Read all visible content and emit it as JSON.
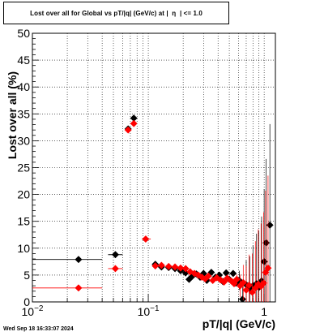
{
  "chart_data": {
    "type": "scatter",
    "title": "Lost over all for Global vs pT/|q| (GeV/c) at |  η  | <= 1.0",
    "xlabel": "pT/|q| (GeV/c)",
    "ylabel": "Lost over all (%)",
    "x_scale": "log",
    "xlim": [
      0.01,
      1.25
    ],
    "ylim": [
      0,
      50
    ],
    "y_ticks": [
      "0",
      "5",
      "10",
      "15",
      "20",
      "25",
      "30",
      "35",
      "40",
      "45",
      "50"
    ],
    "x_tick_labels": [
      {
        "value": 0.01,
        "base": "10",
        "exp": "−2"
      },
      {
        "value": 0.1,
        "base": "10",
        "exp": "−1"
      },
      {
        "value": 1,
        "base": "1",
        "exp": ""
      }
    ],
    "grid": true,
    "series": [
      {
        "color": "#000000",
        "points": [
          {
            "x": 0.025,
            "y": 7.9,
            "xlo": 0.01,
            "xhi": 0.04
          },
          {
            "x": 0.052,
            "y": 8.8,
            "xlo": 0.045,
            "xhi": 0.06
          },
          {
            "x": 0.067,
            "y": 32.2
          },
          {
            "x": 0.075,
            "y": 34.2
          },
          {
            "x": 0.115,
            "y": 7.0
          },
          {
            "x": 0.13,
            "y": 6.5
          },
          {
            "x": 0.15,
            "y": 6.4
          },
          {
            "x": 0.17,
            "y": 6.2
          },
          {
            "x": 0.19,
            "y": 5.8
          },
          {
            "x": 0.21,
            "y": 5.4
          },
          {
            "x": 0.225,
            "y": 4.2
          },
          {
            "x": 0.24,
            "y": 4.8
          },
          {
            "x": 0.26,
            "y": 5.2
          },
          {
            "x": 0.28,
            "y": 4.6
          },
          {
            "x": 0.3,
            "y": 5.3
          },
          {
            "x": 0.32,
            "y": 4.0
          },
          {
            "x": 0.35,
            "y": 5.5
          },
          {
            "x": 0.38,
            "y": 4.6
          },
          {
            "x": 0.41,
            "y": 5.0
          },
          {
            "x": 0.44,
            "y": 3.8
          },
          {
            "x": 0.47,
            "y": 5.4
          },
          {
            "x": 0.5,
            "y": 4.2
          },
          {
            "x": 0.54,
            "y": 5.3
          },
          {
            "x": 0.57,
            "y": 3.5
          },
          {
            "x": 0.61,
            "y": 4.0
          },
          {
            "x": 0.65,
            "y": 0.5
          },
          {
            "x": 0.7,
            "y": 3.2
          },
          {
            "x": 0.75,
            "y": 2.5
          },
          {
            "x": 0.8,
            "y": 3.0
          },
          {
            "x": 0.86,
            "y": 3.4
          },
          {
            "x": 0.9,
            "y": 2.7
          },
          {
            "x": 0.95,
            "y": 3.9
          },
          {
            "x": 1.0,
            "y": 7.5
          },
          {
            "x": 1.04,
            "y": 11.0
          },
          {
            "x": 1.12,
            "y": 14.3
          }
        ]
      },
      {
        "color": "#ff0000",
        "points": [
          {
            "x": 0.025,
            "y": 2.6,
            "xlo": 0.01,
            "xhi": 0.04
          },
          {
            "x": 0.052,
            "y": 6.2,
            "xlo": 0.045,
            "xhi": 0.06
          },
          {
            "x": 0.067,
            "y": 32.0
          },
          {
            "x": 0.075,
            "y": 33.2
          },
          {
            "x": 0.095,
            "y": 11.7,
            "xlo": 0.088,
            "xhi": 0.105
          },
          {
            "x": 0.115,
            "y": 6.7
          },
          {
            "x": 0.13,
            "y": 6.8
          },
          {
            "x": 0.15,
            "y": 6.6
          },
          {
            "x": 0.17,
            "y": 6.5
          },
          {
            "x": 0.19,
            "y": 6.3
          },
          {
            "x": 0.21,
            "y": 6.2
          },
          {
            "x": 0.23,
            "y": 5.6
          },
          {
            "x": 0.25,
            "y": 5.3
          },
          {
            "x": 0.27,
            "y": 5.0
          },
          {
            "x": 0.29,
            "y": 4.6
          },
          {
            "x": 0.31,
            "y": 4.3
          },
          {
            "x": 0.33,
            "y": 4.8
          },
          {
            "x": 0.36,
            "y": 4.0
          },
          {
            "x": 0.39,
            "y": 4.5
          },
          {
            "x": 0.42,
            "y": 4.1
          },
          {
            "x": 0.45,
            "y": 3.7
          },
          {
            "x": 0.48,
            "y": 4.4
          },
          {
            "x": 0.52,
            "y": 3.9
          },
          {
            "x": 0.55,
            "y": 3.4
          },
          {
            "x": 0.58,
            "y": 4.2
          },
          {
            "x": 0.62,
            "y": 3.0
          },
          {
            "x": 0.66,
            "y": 3.6
          },
          {
            "x": 0.7,
            "y": 2.2
          },
          {
            "x": 0.74,
            "y": 3.1
          },
          {
            "x": 0.79,
            "y": 1.8
          },
          {
            "x": 0.84,
            "y": 2.6
          },
          {
            "x": 0.89,
            "y": 3.3
          },
          {
            "x": 0.94,
            "y": 2.9
          },
          {
            "x": 0.99,
            "y": 3.5
          },
          {
            "x": 1.03,
            "y": 5.5
          },
          {
            "x": 1.08,
            "y": 6.3
          }
        ]
      }
    ]
  },
  "footer": {
    "timestamp": "Wed Sep 18 16:33:07 2024"
  }
}
